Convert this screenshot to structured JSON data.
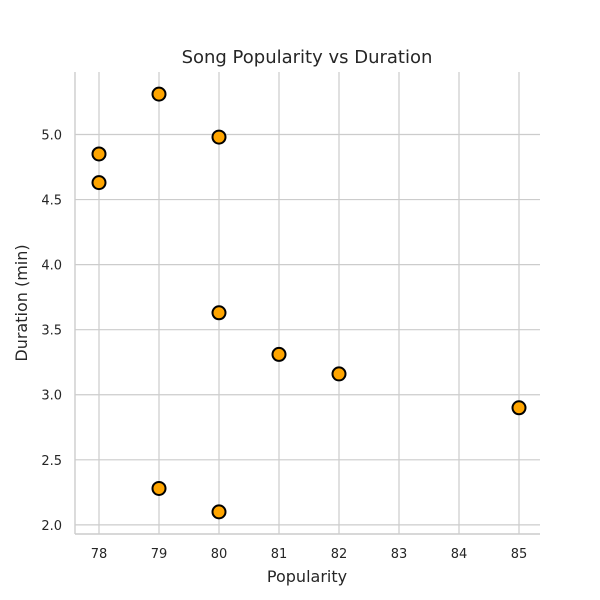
{
  "chart_data": {
    "type": "scatter",
    "title": "Song Popularity vs Duration",
    "xlabel": "Popularity",
    "ylabel": "Duration (min)",
    "xlim": [
      77.6,
      85.35
    ],
    "ylim": [
      1.93,
      5.48
    ],
    "x_ticks": [
      78,
      79,
      80,
      81,
      82,
      83,
      84,
      85
    ],
    "y_ticks": [
      2.0,
      2.5,
      3.0,
      3.5,
      4.0,
      4.5,
      5.0
    ],
    "grid": true,
    "marker_color": "#FFA500",
    "marker_edge_color": "#000000",
    "points": [
      {
        "x": 79,
        "y": 5.31
      },
      {
        "x": 80,
        "y": 4.98
      },
      {
        "x": 78,
        "y": 4.85
      },
      {
        "x": 78,
        "y": 4.63
      },
      {
        "x": 80,
        "y": 3.63
      },
      {
        "x": 81,
        "y": 3.31
      },
      {
        "x": 82,
        "y": 3.16
      },
      {
        "x": 85,
        "y": 2.9
      },
      {
        "x": 79,
        "y": 2.28
      },
      {
        "x": 80,
        "y": 2.1
      }
    ]
  }
}
